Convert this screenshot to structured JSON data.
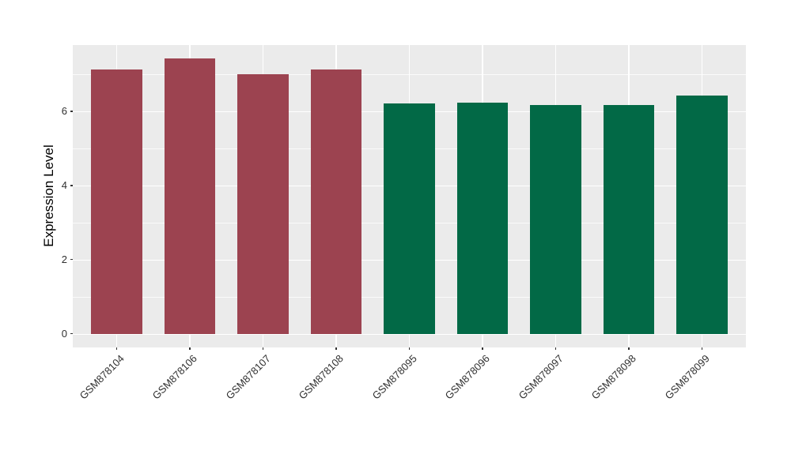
{
  "chart_data": {
    "type": "bar",
    "title": "",
    "xlabel": "",
    "ylabel": "Expression Level",
    "categories": [
      "GSM878104",
      "GSM878106",
      "GSM878107",
      "GSM878108",
      "GSM878095",
      "GSM878096",
      "GSM878097",
      "GSM878098",
      "GSM878099"
    ],
    "values": [
      7.12,
      7.42,
      7.0,
      7.12,
      6.21,
      6.23,
      6.18,
      6.18,
      6.43
    ],
    "bar_colors": [
      "#9C4350",
      "#9C4350",
      "#9C4350",
      "#9C4350",
      "#026946",
      "#026946",
      "#026946",
      "#026946",
      "#026946"
    ],
    "group_colors": {
      "left_group": "#9C4350",
      "right_group": "#026946"
    },
    "y_ticks": [
      0,
      2,
      4,
      6
    ],
    "y_minor_ticks": [
      1,
      3,
      5,
      7
    ],
    "ylim": [
      -0.37,
      7.79
    ],
    "grid": true,
    "legend_position": "none",
    "panel_bg": "#EBEBEB",
    "grid_color": "#FFFFFF",
    "tick_text_color": "#303030"
  }
}
